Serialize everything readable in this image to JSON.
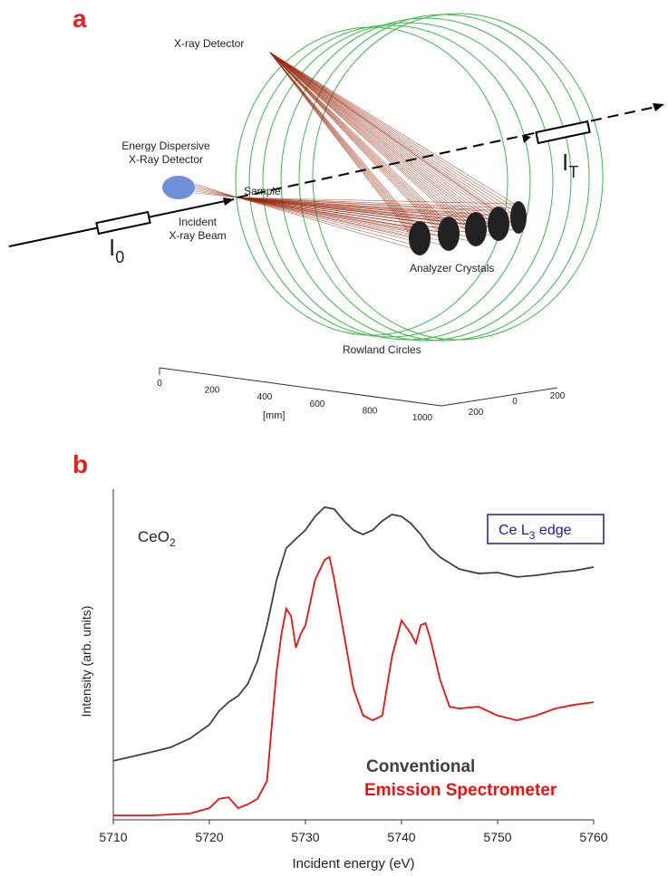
{
  "diagram": {
    "panel_label": "a",
    "xray_detector": "X-ray Detector",
    "ed_detector": [
      "Energy Dispersive",
      "X-Ray Detector"
    ],
    "sample": "Sample",
    "incident_beam": [
      "Incident",
      "X-ray Beam"
    ],
    "i0": {
      "base": "I",
      "sub": "0"
    },
    "it": {
      "base": "I",
      "sub": "T"
    },
    "analyzer": "Analyzer Crystals",
    "rowland": "Rowland Circles",
    "axis_unit": "[mm]",
    "axis_long_ticks": [
      0,
      200,
      400,
      600,
      800,
      1000
    ],
    "axis_short_ticks": [
      200,
      0,
      200
    ]
  },
  "chart_data": {
    "type": "line",
    "panel_label": "b",
    "sample_label": {
      "base": "CeO",
      "sub": "2"
    },
    "edge_label": {
      "pre": "Ce L",
      "sub": "3",
      "post": " edge"
    },
    "x_label": "Incident energy (eV)",
    "y_label": "Intensity (arb. units)",
    "xlim": [
      5710,
      5760
    ],
    "xticks": [
      5710,
      5720,
      5730,
      5740,
      5750,
      5760
    ],
    "ylim": [
      0,
      1
    ],
    "series": [
      {
        "name": "Conventional",
        "color": "#404040",
        "x": [
          5710,
          5712,
          5714,
          5716,
          5718,
          5720,
          5721,
          5722,
          5723,
          5724,
          5725,
          5726,
          5727,
          5728,
          5729,
          5730,
          5731,
          5732,
          5733,
          5734,
          5735,
          5736,
          5737,
          5738,
          5739,
          5740,
          5741,
          5742,
          5743,
          5744,
          5746,
          5748,
          5750,
          5752,
          5754,
          5756,
          5758,
          5760
        ],
        "values": [
          0.186,
          0.2,
          0.214,
          0.229,
          0.257,
          0.3,
          0.343,
          0.371,
          0.391,
          0.429,
          0.5,
          0.614,
          0.757,
          0.857,
          0.886,
          0.914,
          0.957,
          0.986,
          0.98,
          0.943,
          0.914,
          0.9,
          0.914,
          0.943,
          0.963,
          0.957,
          0.934,
          0.9,
          0.857,
          0.829,
          0.791,
          0.777,
          0.78,
          0.766,
          0.771,
          0.78,
          0.786,
          0.797
        ]
      },
      {
        "name": "Emission Spectrometer",
        "color": "#ee1111",
        "x": [
          5710,
          5714,
          5718,
          5720,
          5721,
          5722,
          5723,
          5724,
          5725,
          5726,
          5726.5,
          5727,
          5727.5,
          5728,
          5728.5,
          5729,
          5729.5,
          5730,
          5731,
          5732,
          5732.5,
          5733,
          5734,
          5735,
          5736,
          5737,
          5738,
          5739,
          5740,
          5741,
          5741.5,
          5742,
          5742.5,
          5743,
          5744,
          5745,
          5746,
          5748,
          5750,
          5752,
          5754,
          5756,
          5758,
          5760
        ],
        "values": [
          0.014,
          0.014,
          0.02,
          0.037,
          0.066,
          0.071,
          0.037,
          0.049,
          0.066,
          0.123,
          0.3,
          0.471,
          0.586,
          0.666,
          0.643,
          0.543,
          0.586,
          0.614,
          0.757,
          0.82,
          0.829,
          0.757,
          0.586,
          0.414,
          0.329,
          0.314,
          0.329,
          0.514,
          0.629,
          0.586,
          0.557,
          0.614,
          0.62,
          0.571,
          0.443,
          0.357,
          0.351,
          0.357,
          0.329,
          0.314,
          0.329,
          0.351,
          0.363,
          0.371
        ]
      }
    ]
  }
}
